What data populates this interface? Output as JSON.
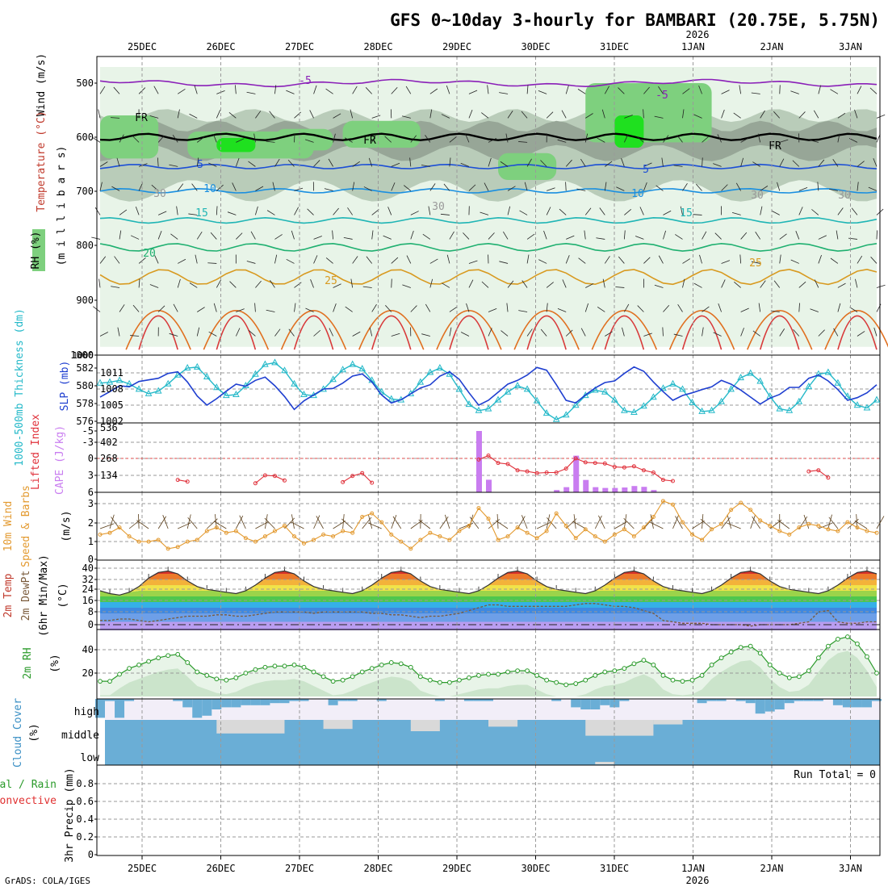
{
  "title": "GFS 0~10day 3-hourly for BAMBARI (20.75E, 5.75N)",
  "year_label": "2026",
  "footer": "GrADS: COLA/IGES",
  "colors": {
    "rh_light": "#e8f4e8",
    "rh_mid": "#b9ccb9",
    "rh_dark": "#97a697",
    "rh_green": "#7ed07e",
    "rh_bright": "#1fe01f",
    "slp": "#1f3fd0",
    "thickness": "#25b9c9",
    "cape": "#c97df0",
    "lifted": "#e0303a",
    "wind10": "#e39a30",
    "rh2m": "#2a9a2a",
    "cloud": "#6aaed6",
    "cloud_bg": "#d9d9d9"
  },
  "date_labels": [
    "25DEC",
    "26DEC",
    "27DEC",
    "28DEC",
    "29DEC",
    "30DEC",
    "31DEC",
    "1JAN",
    "2JAN",
    "3JAN"
  ],
  "panels": {
    "upper": {
      "ylabel_wind": "Wind (m/s)",
      "ylabel_temp": "Temperature (°C)",
      "ylabel_mb": "(m i l l i b a r s)",
      "ylabel_rh": "RH (%)",
      "yticks": [
        "500",
        "600",
        "700",
        "800",
        "900",
        "1000"
      ],
      "temp_labels": [
        "-5",
        "-5",
        "5",
        "5",
        "10",
        "10",
        "15",
        "15",
        "20",
        "25",
        "25",
        "FR",
        "FR",
        "FR",
        "30",
        "30",
        "30",
        "30"
      ]
    },
    "slp": {
      "ylabel_thick": "1000-500mb Thickness (dm)",
      "ylabel_slp": "SLP (mb)",
      "left_ticks": [
        "582",
        "580",
        "578",
        "576"
      ],
      "right_ticks": [
        "1011",
        "1008",
        "1005",
        "1002"
      ]
    },
    "cape": {
      "ylabel_li": "Lifted Index",
      "ylabel_cape": "CAPE (J/kg)",
      "left_ticks": [
        "-5",
        "-3",
        "0",
        "3",
        "6"
      ],
      "right_ticks": [
        "536",
        "402",
        "268",
        "134"
      ]
    },
    "wind10": {
      "ylabel": "10m Wind",
      "ylabel2": "Speed & Barbs",
      "units": "(m/s)",
      "ticks": [
        "3",
        "2",
        "1",
        "0"
      ]
    },
    "temp2m": {
      "ylabel": "2m Temp",
      "ylabel2": "2m DewPt",
      "ylabel3": "(6hr Min/Max)",
      "units": "(°C)",
      "ticks": [
        "40",
        "32",
        "24",
        "16",
        "8",
        "0"
      ]
    },
    "rh2m": {
      "ylabel": "2m RH",
      "units": "(%)",
      "ticks": [
        "40",
        "20"
      ]
    },
    "cloud": {
      "ylabel": "Cloud Cover",
      "units": "(%)",
      "levels": [
        "high",
        "middle",
        "low"
      ]
    },
    "precip": {
      "ylabel": "3hr Precip (mm)",
      "legend_total": "Total / Rain",
      "legend_conv": "Convective",
      "run_total": "Run Total = 0",
      "ticks": [
        "0.8",
        "0.6",
        "0.4",
        "0.2",
        "0"
      ]
    }
  },
  "chart_data": {
    "type": "line",
    "x_unit": "3-hour step from 24 DEC 12Z",
    "steps": 81,
    "slp": [
      1006.5,
      1007.5,
      1008.6,
      1008.4,
      1009.4,
      1009.7,
      1010.0,
      1010.9,
      1011.2,
      1009.3,
      1006.7,
      1005.0,
      1006.2,
      1007.6,
      1008.9,
      1008.5,
      1009.6,
      1010.2,
      1008.6,
      1006.6,
      1004.2,
      1005.8,
      1006.9,
      1008.0,
      1008.1,
      1009.1,
      1010.4,
      1010.8,
      1009.3,
      1006.9,
      1005.4,
      1006.0,
      1007.1,
      1008.2,
      1008.8,
      1010.4,
      1011.2,
      1009.8,
      1007.3,
      1005.0,
      1005.9,
      1007.4,
      1008.9,
      1009.6,
      1010.6,
      1012.0,
      1011.5,
      1008.8,
      1005.9,
      1005.4,
      1006.9,
      1008.2,
      1009.2,
      1009.5,
      1010.9,
      1012.1,
      1011.3,
      1009.3,
      1007.5,
      1005.9,
      1006.8,
      1007.3,
      1007.9,
      1008.4,
      1009.6,
      1008.9,
      1007.8,
      1006.5,
      1005.2,
      1006.3,
      1007.0,
      1008.3,
      1008.3,
      1010.0,
      1010.6,
      1009.5,
      1007.9,
      1005.9,
      1006.4,
      1007.3,
      1008.8
    ],
    "thickness": [
      580.3,
      580.4,
      580.6,
      580.2,
      579.6,
      579.1,
      579.4,
      580.2,
      581.2,
      582.0,
      582.1,
      581.0,
      579.8,
      578.9,
      579.0,
      580.0,
      581.3,
      582.4,
      582.6,
      581.7,
      580.2,
      579.0,
      578.9,
      579.6,
      580.7,
      581.8,
      582.4,
      581.9,
      580.6,
      579.3,
      578.5,
      578.4,
      579.1,
      580.4,
      581.5,
      582.0,
      581.3,
      579.6,
      577.9,
      577.2,
      577.4,
      578.4,
      579.3,
      580.0,
      579.6,
      578.3,
      576.9,
      576.2,
      576.7,
      577.8,
      578.9,
      579.5,
      579.3,
      578.4,
      577.2,
      577.0,
      577.7,
      578.7,
      579.7,
      580.2,
      579.6,
      578.1,
      577.1,
      577.2,
      578.2,
      579.6,
      580.9,
      581.4,
      580.5,
      578.8,
      577.4,
      577.2,
      578.2,
      579.9,
      581.3,
      581.5,
      580.3,
      578.8,
      577.8,
      577.5,
      578.4
    ],
    "cape": [
      0,
      0,
      0,
      0,
      0,
      0,
      0,
      0,
      0,
      0,
      0,
      0,
      0,
      0,
      0,
      0,
      15,
      22,
      0,
      0,
      0,
      0,
      0,
      0,
      0,
      0,
      0,
      0,
      0,
      0,
      0,
      0,
      0,
      0,
      0,
      0,
      0,
      0,
      0,
      0,
      0,
      0,
      0,
      0,
      0,
      0,
      0,
      0,
      0,
      0,
      0,
      0,
      0,
      0,
      0,
      0,
      0,
      0,
      0,
      0,
      0,
      0,
      0,
      0,
      0,
      0,
      0,
      0,
      0,
      0,
      0,
      0,
      0,
      0,
      0,
      0,
      0,
      0,
      0,
      0,
      0
    ],
    "cape_bars": [
      [
        39,
        536
      ],
      [
        40,
        110
      ],
      [
        47,
        20
      ],
      [
        48,
        45
      ],
      [
        49,
        320
      ],
      [
        50,
        108
      ],
      [
        51,
        45
      ],
      [
        52,
        38
      ],
      [
        53,
        38
      ],
      [
        54,
        42
      ],
      [
        55,
        55
      ],
      [
        56,
        48
      ],
      [
        57,
        20
      ]
    ],
    "lifted_index": [
      [
        8,
        3.8
      ],
      [
        9,
        4.1
      ],
      [
        16,
        4.4
      ],
      [
        17,
        3.0
      ],
      [
        18,
        3.1
      ],
      [
        19,
        3.9
      ],
      [
        25,
        4.2
      ],
      [
        26,
        3.1
      ],
      [
        27,
        2.6
      ],
      [
        28,
        4.3
      ],
      [
        39,
        0.2
      ],
      [
        40,
        -0.5
      ],
      [
        41,
        0.8
      ],
      [
        42,
        1.0
      ],
      [
        43,
        2.1
      ],
      [
        44,
        2.3
      ],
      [
        45,
        2.6
      ],
      [
        46,
        2.5
      ],
      [
        47,
        2.5
      ],
      [
        48,
        1.8
      ],
      [
        49,
        0.0
      ],
      [
        50,
        0.7
      ],
      [
        51,
        0.8
      ],
      [
        52,
        0.9
      ],
      [
        53,
        1.5
      ],
      [
        54,
        1.6
      ],
      [
        55,
        1.4
      ],
      [
        56,
        2.1
      ],
      [
        57,
        2.5
      ],
      [
        58,
        3.8
      ],
      [
        59,
        4.0
      ],
      [
        73,
        2.3
      ],
      [
        74,
        2.1
      ],
      [
        75,
        3.4
      ]
    ],
    "wind10_speed": [
      1.4,
      1.5,
      1.8,
      1.3,
      1.0,
      1.0,
      1.1,
      0.6,
      0.7,
      1.0,
      1.1,
      1.6,
      1.8,
      1.5,
      1.6,
      1.2,
      1.0,
      1.3,
      1.6,
      1.9,
      1.3,
      0.9,
      1.1,
      1.4,
      1.3,
      1.6,
      1.5,
      2.4,
      2.6,
      2.1,
      1.4,
      1.0,
      0.6,
      1.1,
      1.5,
      1.3,
      1.1,
      1.6,
      1.9,
      2.9,
      2.3,
      1.1,
      1.3,
      1.8,
      1.5,
      1.2,
      1.6,
      2.6,
      1.9,
      1.2,
      1.7,
      1.3,
      1.0,
      1.4,
      1.7,
      1.3,
      1.8,
      2.4,
      3.3,
      3.1,
      2.1,
      1.4,
      1.1,
      1.7,
      2.0,
      2.8,
      3.2,
      2.8,
      2.2,
      1.9,
      1.6,
      1.4,
      1.8,
      2.0,
      1.9,
      1.7,
      1.6,
      2.1,
      1.8,
      1.6,
      1.5
    ],
    "temp2m": [
      24,
      22,
      21,
      23,
      27,
      33,
      37,
      38,
      36,
      31,
      27,
      25,
      24,
      23,
      22,
      24,
      28,
      33,
      37,
      38,
      36,
      31,
      27,
      25,
      24,
      23,
      22,
      24,
      28,
      33,
      37,
      38,
      36,
      31,
      27,
      25,
      24,
      23,
      22,
      24,
      28,
      33,
      37,
      38,
      36,
      31,
      27,
      25,
      24,
      23,
      22,
      24,
      28,
      33,
      37,
      38,
      36,
      31,
      27,
      25,
      24,
      23,
      22,
      24,
      28,
      33,
      37,
      38,
      36,
      31,
      27,
      25,
      24,
      23,
      22,
      24,
      28,
      33,
      37,
      38,
      36
    ],
    "dewpt2m": [
      3,
      3,
      4,
      4,
      3,
      2,
      3,
      4,
      5,
      6,
      6,
      6,
      7,
      7,
      6,
      6,
      7,
      8,
      9,
      9,
      9,
      9,
      8,
      9,
      9,
      9,
      9,
      9,
      8,
      8,
      7,
      7,
      6,
      5,
      6,
      6,
      7,
      8,
      10,
      12,
      14,
      14,
      13,
      13,
      13,
      13,
      13,
      13,
      13,
      14,
      15,
      15,
      14,
      13,
      13,
      12,
      10,
      8,
      3,
      2,
      1,
      1,
      1,
      0,
      0,
      0,
      0,
      -1,
      0,
      0,
      0,
      0,
      1,
      2,
      9,
      10,
      2,
      1,
      1,
      2,
      2
    ],
    "rh2m": [
      13,
      13,
      19,
      24,
      27,
      30,
      33,
      35,
      36,
      29,
      21,
      18,
      15,
      14,
      16,
      20,
      23,
      25,
      26,
      26,
      27,
      25,
      21,
      17,
      13,
      14,
      17,
      21,
      24,
      27,
      29,
      28,
      25,
      17,
      14,
      12,
      12,
      14,
      16,
      18,
      19,
      19,
      21,
      22,
      22,
      18,
      14,
      12,
      10,
      11,
      14,
      18,
      21,
      22,
      24,
      28,
      31,
      27,
      18,
      14,
      13,
      14,
      18,
      27,
      33,
      38,
      42,
      43,
      37,
      27,
      20,
      16,
      17,
      22,
      33,
      43,
      49,
      51,
      45,
      34,
      20
    ]
  }
}
